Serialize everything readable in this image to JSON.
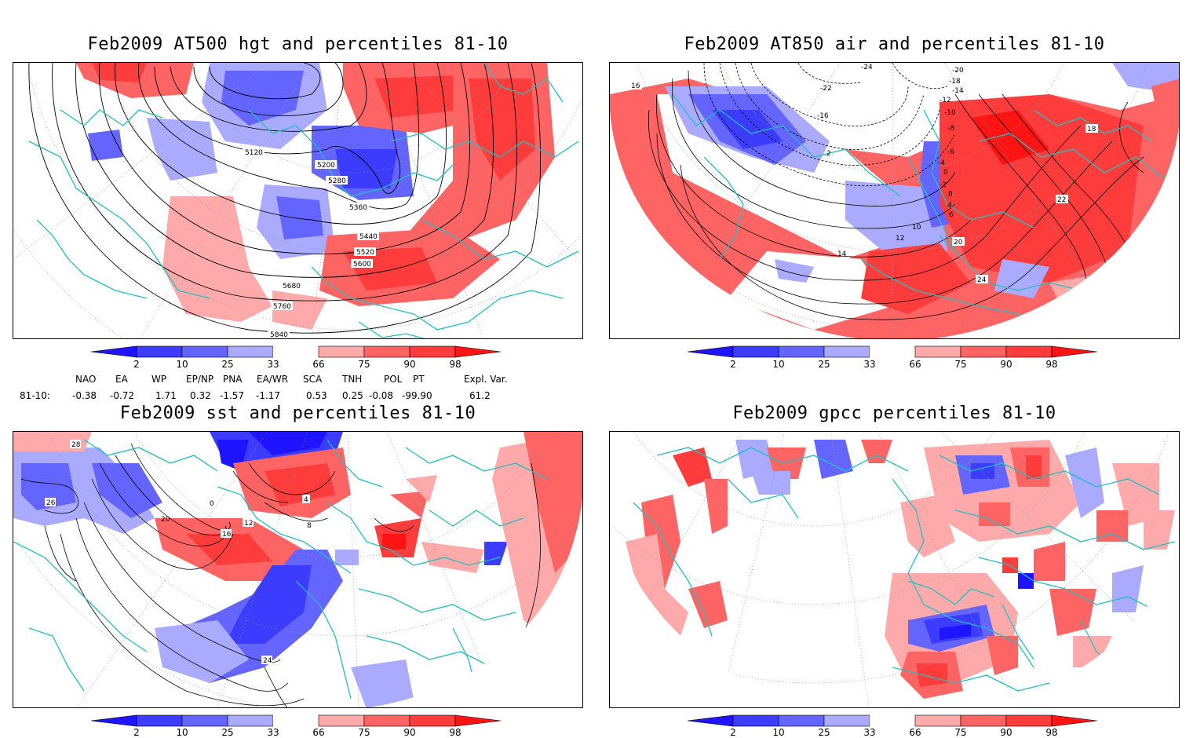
{
  "panels": [
    {
      "title": "Feb2009 AT500 hgt and percentiles 81-10",
      "contour_labels": [
        "5120",
        "5200",
        "5280",
        "5360",
        "5440",
        "5520",
        "5600",
        "5680",
        "5760",
        "5840"
      ]
    },
    {
      "title": "Feb2009 AT850 air and percentiles 81-10",
      "contour_labels": [
        "-24",
        "-22",
        "-20",
        "-18",
        "-16",
        "-14",
        "-12",
        "-10",
        "-8",
        "-6",
        "-4",
        "-2",
        "0",
        "2",
        "4",
        "6",
        "8",
        "10",
        "12",
        "14",
        "16",
        "18",
        "20",
        "22",
        "24"
      ]
    },
    {
      "title": "Feb2009 sst and percentiles 81-10",
      "contour_labels": [
        "28",
        "26",
        "24",
        "20",
        "16",
        "12",
        "8",
        "4",
        "0"
      ]
    },
    {
      "title": "Feb2009 gpcc percentiles 81-10",
      "contour_labels": []
    }
  ],
  "colorbar": {
    "labels": [
      "2",
      "10",
      "25",
      "33",
      "66",
      "75",
      "90",
      "98"
    ],
    "colors": [
      "#1e14ff",
      "#3c3cff",
      "#6464ff",
      "#aaaaff",
      "#ffffff",
      "#ffaaaa",
      "#ff6464",
      "#ff3c3c",
      "#ff1414"
    ]
  },
  "indices": {
    "headers": [
      "NAO",
      "EA",
      "WP",
      "EP/NP",
      "PNA",
      "EA/WR",
      "SCA",
      "TNH",
      "POL",
      "PT",
      "Expl. Var."
    ],
    "row_label": "81-10:",
    "values": [
      "-0.38",
      "-0.72",
      "1.71",
      "0.32",
      "-1.57",
      "-1.17",
      "0.53",
      "0.25",
      "-0.08",
      "-99.90",
      "61.2"
    ]
  }
}
